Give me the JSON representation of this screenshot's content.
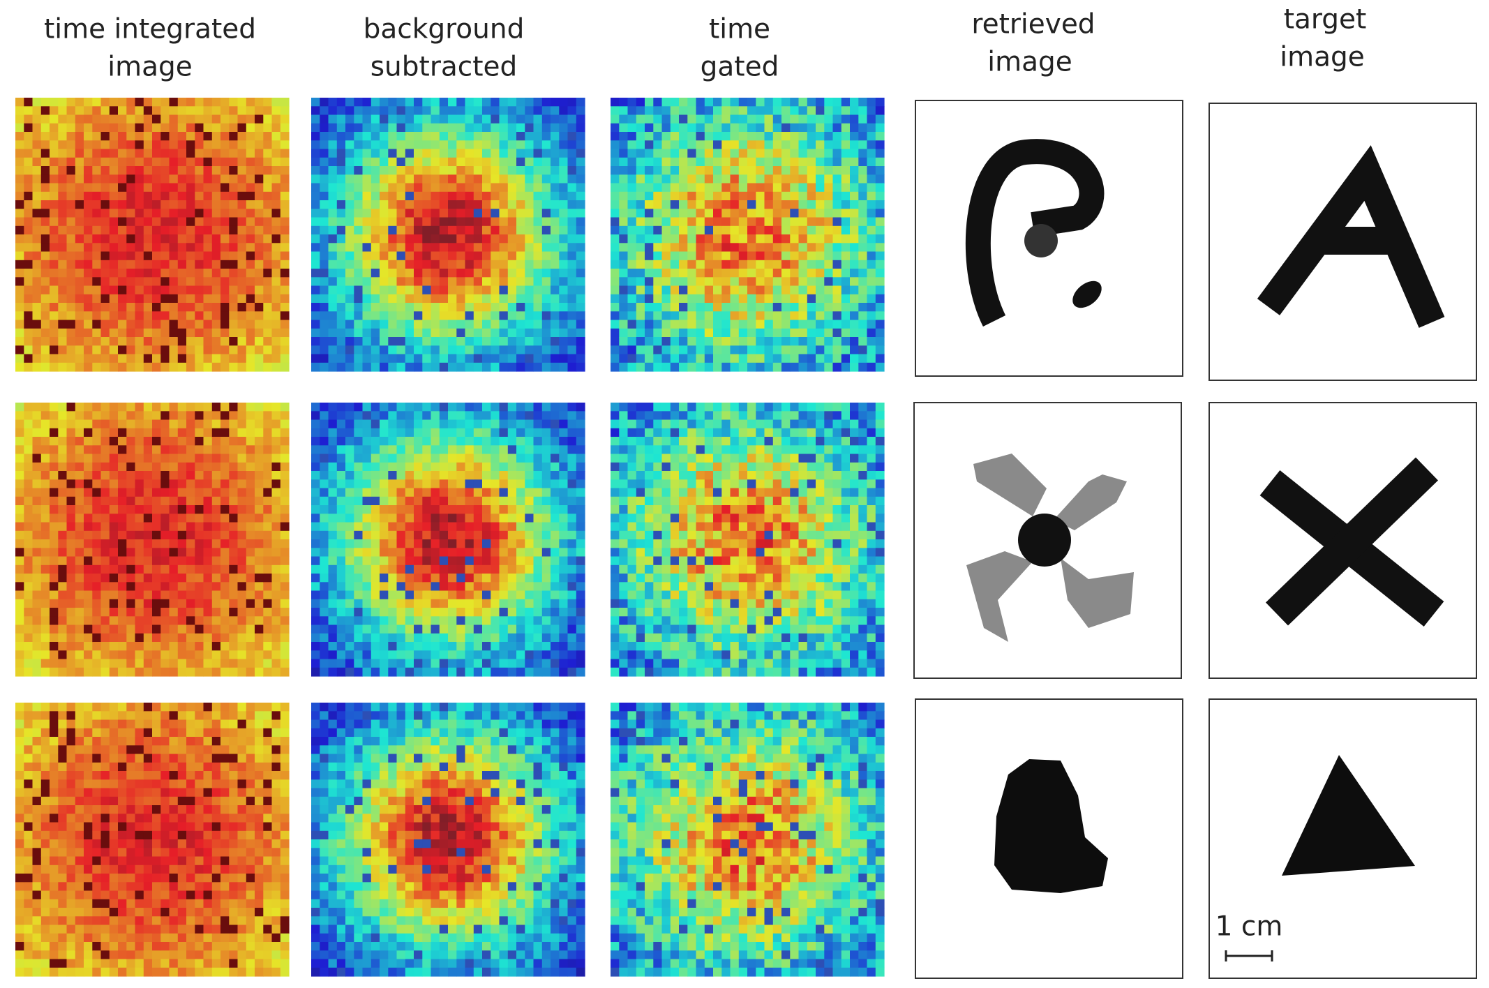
{
  "headings": [
    [
      "time integrated",
      "image"
    ],
    [
      "background",
      "subtracted"
    ],
    [
      "time",
      "gated"
    ],
    [
      "retrieved",
      "image"
    ],
    [
      "target",
      "image"
    ]
  ],
  "scale_bar": "1 cm"
}
